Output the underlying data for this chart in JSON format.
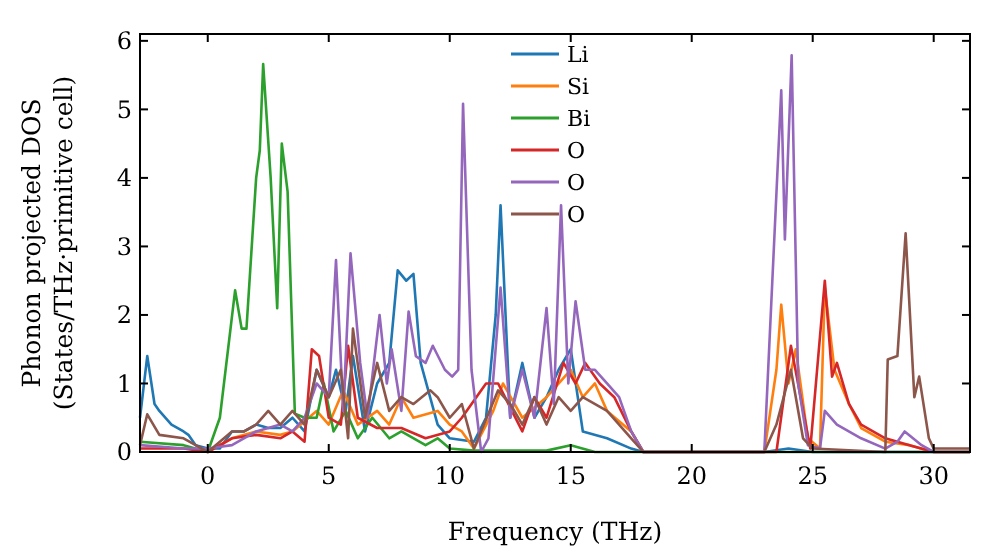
{
  "chart_data": {
    "type": "line",
    "xlabel": "Frequency (THz)",
    "ylabel": "Phonon projected DOS\n(States/THz·primitive cell)",
    "xlim": [
      -2.8,
      31.5
    ],
    "ylim": [
      0,
      6.1
    ],
    "xticks": [
      0,
      5,
      10,
      15,
      20,
      25,
      30
    ],
    "yticks": [
      0,
      1,
      2,
      3,
      4,
      5,
      6
    ],
    "grid": false,
    "legend": "top",
    "marker": "none",
    "line_style": "solid",
    "series": [
      {
        "name": "Li",
        "color": "#1f77b4",
        "x": [
          -2.8,
          -2.5,
          -2.2,
          -2,
          -1.5,
          -1,
          -0.8,
          -0.5,
          0,
          0.5,
          1,
          1.5,
          2,
          2.5,
          3,
          3.5,
          4,
          4.5,
          5,
          5.3,
          5.7,
          6,
          6.5,
          7,
          7.5,
          7.85,
          8.2,
          8.5,
          8.8,
          9.5,
          10,
          11,
          11.5,
          11.9,
          12.1,
          12.5,
          13,
          13.5,
          14,
          14.5,
          15,
          15.5,
          16.5,
          17.5,
          18,
          23,
          24,
          25,
          31.5
        ],
        "values": [
          0.5,
          1.4,
          0.7,
          0.6,
          0.4,
          0.3,
          0.25,
          0.1,
          0.05,
          0.05,
          0.3,
          0.3,
          0.4,
          0.35,
          0.35,
          0.5,
          0.3,
          1.2,
          0.8,
          1.2,
          0.6,
          1.4,
          0.3,
          1.0,
          1.3,
          2.65,
          2.5,
          2.6,
          1.3,
          0.4,
          0.2,
          0.15,
          0.5,
          2.0,
          3.6,
          0.5,
          1.3,
          0.5,
          0.8,
          1.2,
          1.5,
          0.3,
          0.2,
          0.05,
          0,
          0,
          0.05,
          0,
          0
        ]
      },
      {
        "name": "Si",
        "color": "#ff7f0e",
        "x": [
          0,
          1,
          2,
          3,
          3.5,
          4.5,
          5,
          5.6,
          6.2,
          7,
          7.5,
          8,
          8.5,
          9.5,
          10,
          10.5,
          11,
          11.8,
          12.2,
          13,
          14,
          15,
          15.5,
          16,
          16.5,
          17.5,
          18,
          23,
          23.5,
          23.7,
          24,
          24.3,
          24.8,
          25.3,
          25.5,
          25.9,
          26.5,
          27,
          28,
          29,
          30,
          31.5
        ],
        "values": [
          0,
          0.2,
          0.3,
          0.25,
          0.3,
          0.6,
          0.4,
          0.9,
          0.4,
          0.6,
          0.4,
          0.8,
          0.5,
          0.6,
          0.4,
          0.3,
          0.05,
          0.6,
          1.0,
          0.5,
          0.8,
          1.2,
          0.8,
          1.0,
          0.6,
          0.3,
          0,
          0,
          1.2,
          2.15,
          1.0,
          1.5,
          0.2,
          0.05,
          2.4,
          1.2,
          0.7,
          0.35,
          0.15,
          0.1,
          0,
          0
        ]
      },
      {
        "name": "Bi",
        "color": "#2ca02c",
        "x": [
          -2.8,
          -1,
          0,
          0.5,
          1.13,
          1.4,
          1.6,
          2.0,
          2.15,
          2.29,
          2.6,
          2.87,
          3.06,
          3.3,
          3.6,
          4.0,
          4.5,
          4.8,
          5.2,
          5.7,
          6.2,
          6.8,
          7.5,
          8.0,
          9,
          9.5,
          10,
          11,
          14,
          15,
          16,
          31.5
        ],
        "values": [
          0.15,
          0.1,
          0,
          0.5,
          2.36,
          1.8,
          1.8,
          4.0,
          4.4,
          5.66,
          4.0,
          2.1,
          4.5,
          3.8,
          0.56,
          0.5,
          0.5,
          1.0,
          0.3,
          0.6,
          0.2,
          0.5,
          0.2,
          0.3,
          0.1,
          0.2,
          0.05,
          0.02,
          0.02,
          0.1,
          0,
          0
        ]
      },
      {
        "name": "O",
        "color": "#d62728",
        "x": [
          -2.8,
          -1,
          0,
          1,
          2,
          3,
          3.5,
          4,
          4.3,
          4.6,
          5,
          5.5,
          5.8,
          6.2,
          7,
          8,
          9,
          10,
          10.5,
          11.5,
          12,
          13,
          13.5,
          14,
          14.7,
          15.2,
          15.6,
          16.2,
          16.8,
          17.5,
          18,
          23.5,
          24.1,
          24.9,
          25.5,
          25.8,
          26,
          26.5,
          27,
          28,
          29,
          30,
          31.5
        ],
        "values": [
          0.05,
          0.05,
          0,
          0.2,
          0.25,
          0.2,
          0.3,
          0.15,
          1.5,
          1.4,
          0.5,
          0.4,
          1.55,
          0.5,
          0.35,
          0.35,
          0.2,
          0.3,
          0.5,
          1.0,
          1.0,
          0.3,
          0.8,
          0.5,
          1.3,
          1.0,
          1.3,
          1.0,
          0.8,
          0.3,
          0,
          0,
          1.55,
          0.05,
          2.5,
          1.1,
          1.3,
          0.7,
          0.4,
          0.2,
          0.1,
          0,
          0
        ]
      },
      {
        "name": "O",
        "color": "#9467bd",
        "x": [
          -2.8,
          -1,
          0,
          1,
          2,
          3,
          3.5,
          4,
          4.5,
          5,
          5.3,
          5.6,
          5.9,
          6.3,
          6.6,
          7.1,
          7.4,
          7.6,
          8.0,
          8.3,
          8.6,
          9,
          9.3,
          9.8,
          10.1,
          10.35,
          10.55,
          10.9,
          11.3,
          11.6,
          12.1,
          12.5,
          13,
          13.5,
          14.0,
          14.3,
          14.6,
          14.9,
          15.2,
          15.6,
          16.0,
          16.5,
          17,
          17.5,
          18,
          23,
          23.7,
          23.85,
          24.13,
          24.4,
          24.8,
          25.3,
          25.5,
          26,
          27,
          28,
          28.5,
          28.8,
          29.5,
          30,
          31.5
        ],
        "values": [
          0.1,
          0.05,
          0.05,
          0.1,
          0.3,
          0.4,
          0.3,
          0.5,
          1.0,
          0.8,
          2.8,
          0.6,
          2.9,
          1.3,
          0.5,
          2.0,
          1.0,
          1.5,
          0.6,
          2.05,
          1.4,
          1.3,
          1.55,
          1.2,
          1.1,
          1.2,
          5.08,
          1.2,
          0,
          0.2,
          2.4,
          0.5,
          1.2,
          0.5,
          2.1,
          0.7,
          3.6,
          1.0,
          2.2,
          1.2,
          1.2,
          1.0,
          0.8,
          0.3,
          0,
          0,
          5.28,
          3.1,
          5.79,
          1.0,
          0.1,
          0.05,
          0.6,
          0.4,
          0.2,
          0.05,
          0.15,
          0.3,
          0.1,
          0,
          0
        ]
      },
      {
        "name": "O",
        "color": "#8c564b",
        "x": [
          -2.8,
          -2.5,
          -2,
          -1,
          -0.5,
          0,
          1,
          1.5,
          2,
          2.5,
          3,
          3.5,
          4,
          4.5,
          5,
          5.5,
          5.8,
          6.0,
          6.5,
          7,
          7.5,
          8,
          8.5,
          9.2,
          9.5,
          10,
          10.5,
          11,
          12,
          12.5,
          13,
          13.5,
          14,
          14.5,
          15,
          15.5,
          16.5,
          17.5,
          18,
          23,
          23.5,
          24.1,
          24.6,
          25,
          28,
          28.1,
          28.5,
          28.84,
          29.2,
          29.4,
          29.8,
          30,
          31.5
        ],
        "values": [
          0.1,
          0.55,
          0.25,
          0.2,
          0.1,
          0,
          0.3,
          0.3,
          0.4,
          0.6,
          0.4,
          0.6,
          0.4,
          1.2,
          0.8,
          1.2,
          0.2,
          1.8,
          0.5,
          1.3,
          0.6,
          0.8,
          0.7,
          0.9,
          0.8,
          0.5,
          0.7,
          0.05,
          0.9,
          0.7,
          0.4,
          0.8,
          0.4,
          0.8,
          0.6,
          0.8,
          0.6,
          0.2,
          0,
          0,
          0.4,
          1.2,
          0.2,
          0.05,
          0,
          1.35,
          1.4,
          3.19,
          0.8,
          1.1,
          0.2,
          0.05,
          0.05
        ]
      }
    ]
  }
}
